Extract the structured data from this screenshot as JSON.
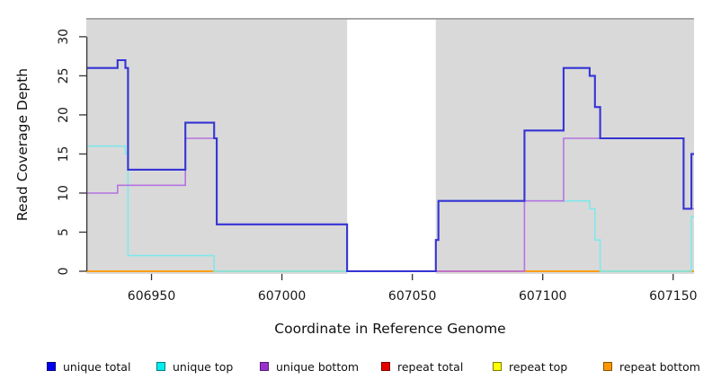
{
  "chart_data": {
    "type": "step-line",
    "xlabel": "Coordinate in Reference Genome",
    "ylabel": "Read Coverage Depth",
    "x_ticks": [
      606950,
      607000,
      607050,
      607100,
      607150
    ],
    "y_ticks": [
      0,
      5,
      10,
      15,
      20,
      25,
      30
    ],
    "x_range": [
      606925,
      607158
    ],
    "y_range": [
      0,
      32.4
    ],
    "grid": false,
    "plot_background": "#d9d9d9",
    "gap_region": {
      "x0": 607025,
      "x1": 607059,
      "color": "#ffffff",
      "note": "white uncovered interval"
    },
    "top_border_color": "#949494",
    "axis_color": "#333333",
    "tick_label_color": "#1a1a1a",
    "series": [
      {
        "name": "repeat total",
        "color": "#cc2222",
        "width": 1.5,
        "points": [
          [
            606925,
            0
          ]
        ],
        "end": 607158
      },
      {
        "name": "repeat top",
        "color": "#f0e000",
        "width": 1.5,
        "points": [
          [
            606925,
            0
          ]
        ],
        "end": 607158
      },
      {
        "name": "repeat bottom",
        "color": "#ff9d14",
        "width": 1.5,
        "points": [
          [
            606925,
            0
          ]
        ],
        "end": 607158
      },
      {
        "name": "unique top",
        "color": "#80e8ec",
        "width": 1.6,
        "points": [
          [
            606925,
            16
          ],
          [
            606940,
            15
          ],
          [
            606941,
            2
          ],
          [
            606974,
            0
          ],
          [
            607059,
            4
          ],
          [
            607060,
            9
          ],
          [
            607118,
            8
          ],
          [
            607120,
            4
          ],
          [
            607122,
            0
          ],
          [
            607157,
            7
          ]
        ],
        "end": 607158
      },
      {
        "name": "unique bottom",
        "color": "#b573e0",
        "width": 1.6,
        "points": [
          [
            606925,
            10
          ],
          [
            606937,
            11
          ],
          [
            606963,
            17
          ],
          [
            606975,
            6
          ],
          [
            607025,
            0
          ],
          [
            607093,
            9
          ],
          [
            607108,
            17
          ],
          [
            607154,
            8
          ]
        ],
        "end": 607158
      },
      {
        "name": "unique total",
        "color": "#3534d4",
        "width": 2.1,
        "points": [
          [
            606925,
            26
          ],
          [
            606937,
            27
          ],
          [
            606940,
            26
          ],
          [
            606941,
            13
          ],
          [
            606963,
            19
          ],
          [
            606974,
            17
          ],
          [
            606975,
            6
          ],
          [
            607025,
            0
          ],
          [
            607059,
            4
          ],
          [
            607060,
            9
          ],
          [
            607093,
            18
          ],
          [
            607108,
            26
          ],
          [
            607118,
            25
          ],
          [
            607120,
            21
          ],
          [
            607122,
            17
          ],
          [
            607154,
            8
          ],
          [
            607157,
            15
          ]
        ],
        "end": 607158
      }
    ],
    "baseline_segments": [
      {
        "x0": 606925,
        "x1": 606974,
        "color": "#ff9d14"
      },
      {
        "x0": 606974,
        "x1": 607025,
        "color": "#a5d6a5"
      },
      {
        "x0": 607059,
        "x1": 607093,
        "color": "#e06d8f"
      },
      {
        "x0": 607093,
        "x1": 607122,
        "color": "#ff9d14"
      },
      {
        "x0": 607122,
        "x1": 607156,
        "color": "#a5d6a5"
      },
      {
        "x0": 607156,
        "x1": 607158,
        "color": "#ff9d14"
      }
    ],
    "legend": [
      {
        "label": "unique total",
        "fill": "#0000f0",
        "border": "#000080"
      },
      {
        "label": "unique top",
        "fill": "#00eeee",
        "border": "#007d7d"
      },
      {
        "label": "unique bottom",
        "fill": "#9932cc",
        "border": "#551a73"
      },
      {
        "label": "repeat total",
        "fill": "#e60000",
        "border": "#7a0000"
      },
      {
        "label": "repeat top",
        "fill": "#ffff00",
        "border": "#7d7d00"
      },
      {
        "label": "repeat bottom",
        "fill": "#ff9900",
        "border": "#8a5200"
      }
    ]
  }
}
